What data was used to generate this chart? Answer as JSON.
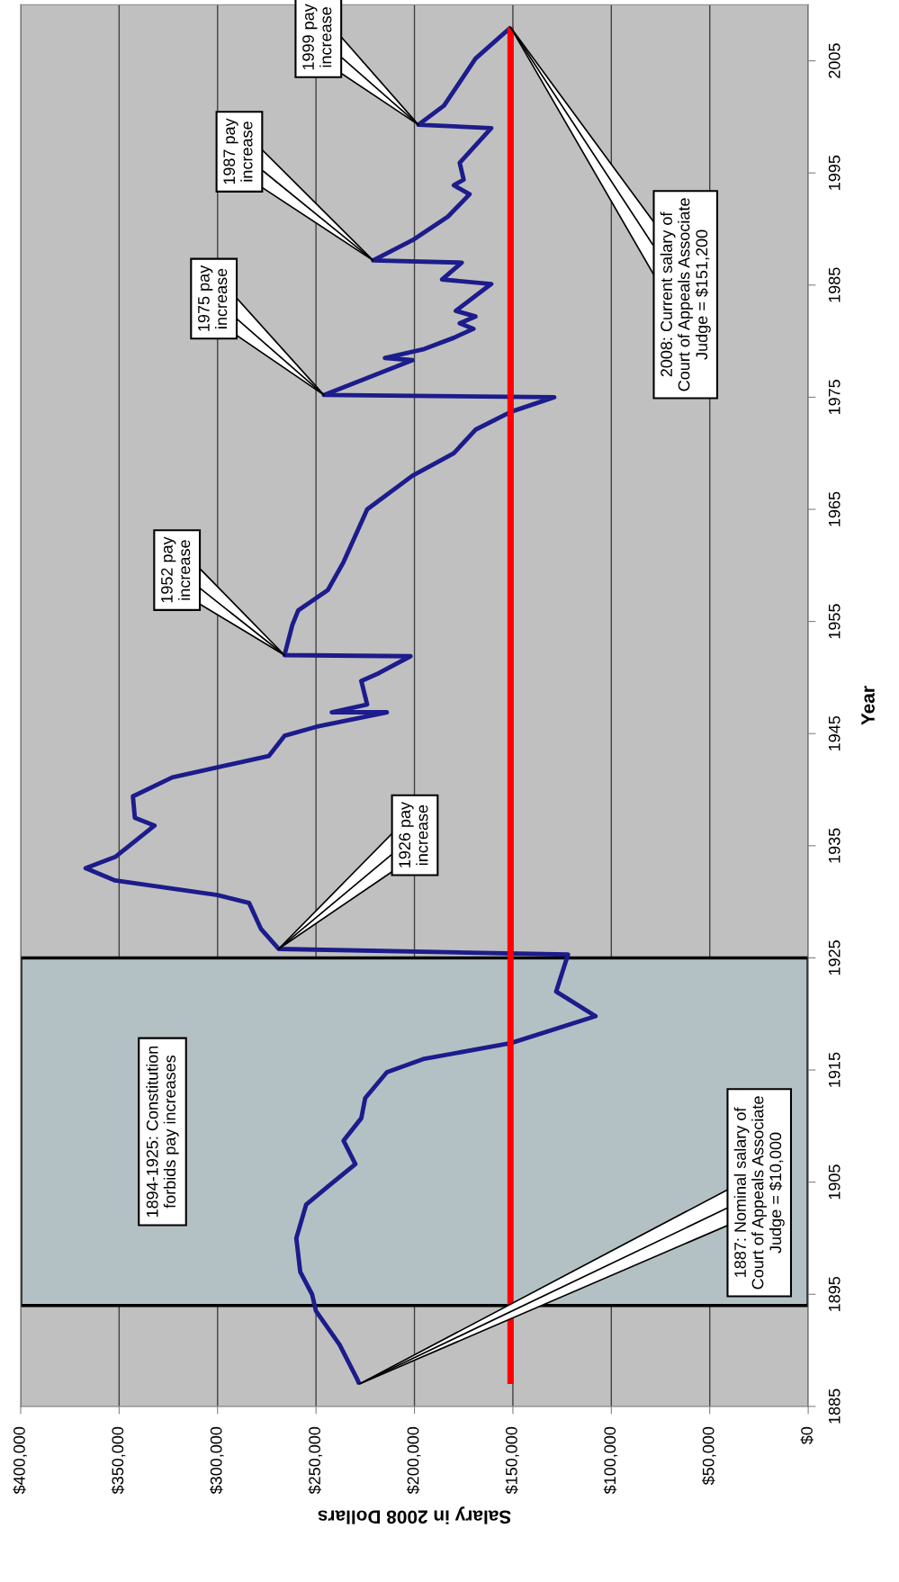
{
  "chart_data": {
    "type": "line",
    "xlabel": "Salary in 2008 Dollars",
    "ylabel": "Year",
    "xlim": [
      400000,
      0
    ],
    "xticks": [
      {
        "value": 400000,
        "label": "$400,000"
      },
      {
        "value": 350000,
        "label": "$350,000"
      },
      {
        "value": 300000,
        "label": "$300,000"
      },
      {
        "value": 250000,
        "label": "$250,000"
      },
      {
        "value": 200000,
        "label": "$200,000"
      },
      {
        "value": 150000,
        "label": "$150,000"
      },
      {
        "value": 100000,
        "label": "$100,000"
      },
      {
        "value": 50000,
        "label": "$50,000"
      },
      {
        "value": 0,
        "label": "$0"
      }
    ],
    "ylim": [
      1885,
      2010
    ],
    "yticks": [
      1885,
      1895,
      1905,
      1915,
      1925,
      1935,
      1945,
      1955,
      1965,
      1975,
      1985,
      1995,
      2005
    ],
    "grid": "x",
    "marker": "none",
    "line_style": "solid",
    "series": [
      {
        "color": "#1c1c8c",
        "values": [
          1887,
          1887.4,
          1890.5,
          1893.5,
          1895,
          1897,
          1900,
          1903,
          1904.6,
          1906.6,
          1908.7,
          1910.7,
          1912.5,
          1914.8,
          1916,
          1917.4,
          1919.8,
          1922,
          1925.3,
          1925.8,
          1927.6,
          1929.9,
          1930.6,
          1931.9,
          1933,
          1934,
          1936.8,
          1937.5,
          1939.4,
          1941.1,
          1943,
          1944.8,
          1945.6,
          1946.9,
          1946.9,
          1947.6,
          1949.7,
          1950.4,
          1951.9,
          1952,
          1954.7,
          1956,
          1957.8,
          1960.3,
          1965,
          1968,
          1970,
          1972.1,
          1973.7,
          1975,
          1975.2,
          1978.3,
          1978.5,
          1979.3,
          1980.3,
          1981.1,
          1981.6,
          1982.2,
          1982.7,
          1985.1,
          1985.5,
          1987,
          1987.2,
          1989,
          1991.1,
          1993.1,
          1993.9,
          1994.4,
          1995.9,
          1999,
          1999.3,
          2001,
          2005.2,
          2008
        ],
        "x": [
          228000,
          229000,
          238000,
          250000,
          252000,
          258000,
          260000,
          255000,
          244000,
          230000,
          236000,
          227000,
          225000,
          214000,
          195000,
          151000,
          108000,
          128000,
          122000,
          269000,
          278000,
          284000,
          300000,
          352000,
          367000,
          352000,
          332000,
          342000,
          343000,
          323000,
          274000,
          266000,
          250000,
          214000,
          242000,
          224000,
          227000,
          218000,
          202000,
          266000,
          262000,
          259000,
          244000,
          236000,
          224000,
          201000,
          180000,
          169000,
          151000,
          129000,
          246000,
          201000,
          215000,
          195000,
          180000,
          170000,
          177000,
          169000,
          179000,
          161000,
          186000,
          176000,
          221000,
          201000,
          183000,
          172000,
          180000,
          175000,
          177000,
          161000,
          198000,
          185000,
          169000,
          151000
        ]
      },
      {
        "color": "#ff0000",
        "x": [
          151200,
          151200
        ],
        "values": [
          1887,
          2008
        ]
      }
    ],
    "bands": [
      {
        "axis": "y",
        "from": 1894,
        "to": 1925,
        "label": "1894-1925: Constitution\nforbids pay increases",
        "color": "#b4c1c4"
      }
    ],
    "annotations": [
      {
        "text": "1887: Nominal salary of\nCourt of Appeals Associate\nJudge = $10,000",
        "x": 228000,
        "y": 1887
      },
      {
        "text": "1926 pay\nincrease",
        "x": 269000,
        "y": 1925.8
      },
      {
        "text": "1952 pay\nincrease",
        "x": 266000,
        "y": 1952
      },
      {
        "text": "1975 pay\nincrease",
        "x": 246000,
        "y": 1975.2
      },
      {
        "text": "1987 pay\nincrease",
        "x": 221000,
        "y": 1987.2
      },
      {
        "text": "1999 pay\nincrease",
        "x": 198000,
        "y": 1999.3
      },
      {
        "text": "2008: Current salary of\nCourt of Appeals Associate\nJudge = $151,200",
        "x": 151200,
        "y": 2008
      }
    ]
  }
}
